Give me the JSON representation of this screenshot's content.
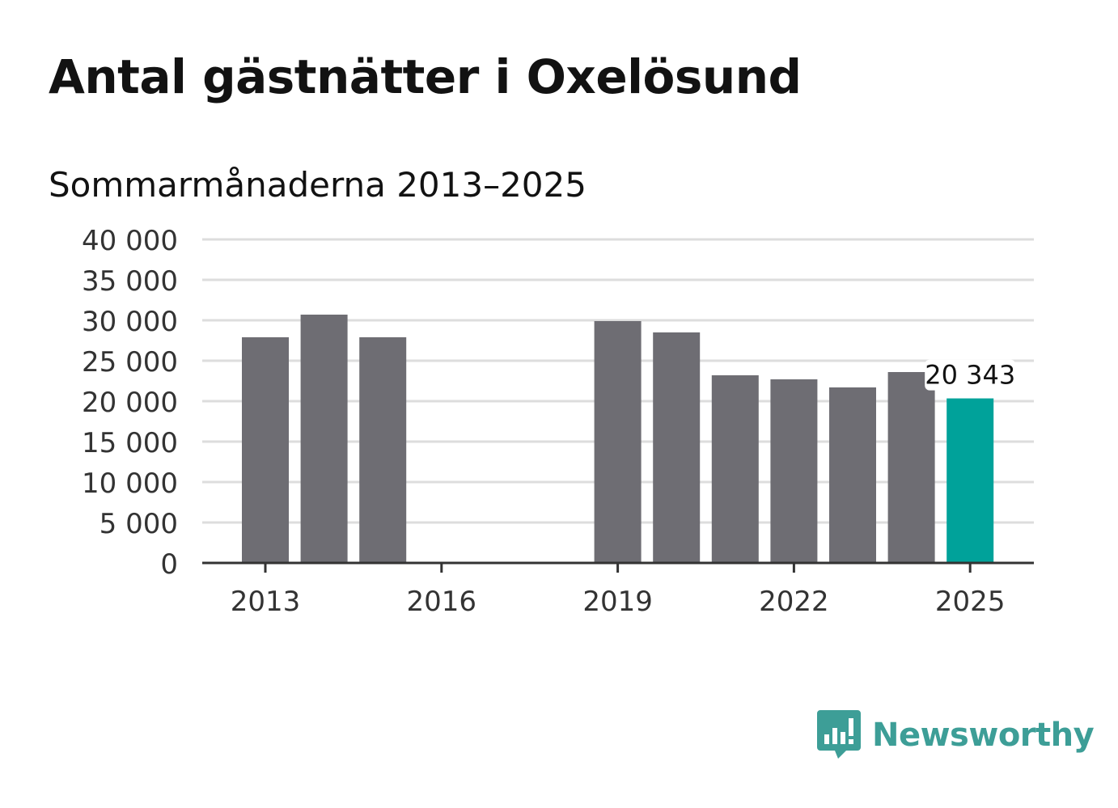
{
  "header": {
    "title": "Antal gästnätter i Oxelösund",
    "subtitle": "Sommarmånaderna 2013–2025"
  },
  "brand": {
    "name": "Newsworthy",
    "logo_icon": "bar-chart-speech-bubble-icon",
    "color": "#3d9e97"
  },
  "colors": {
    "bar": "#6e6d73",
    "highlight": "#00a29a",
    "grid": "#dddddd",
    "axis": "#333333"
  },
  "chart_data": {
    "type": "bar",
    "categories": [
      "2013",
      "2014",
      "2015",
      "2016",
      "2017",
      "2018",
      "2019",
      "2020",
      "2021",
      "2022",
      "2023",
      "2024",
      "2025"
    ],
    "values": [
      27900,
      30700,
      27900,
      null,
      null,
      null,
      29900,
      28500,
      23200,
      22700,
      21700,
      23600,
      20343
    ],
    "x_tick_labels": [
      "2013",
      "2016",
      "2019",
      "2022",
      "2025"
    ],
    "y_tick_labels": [
      "0",
      "5 000",
      "10 000",
      "15 000",
      "20 000",
      "25 000",
      "30 000",
      "35 000",
      "40 000"
    ],
    "ylim": [
      0,
      40000
    ],
    "highlight_category": "2025",
    "data_label": "20 343",
    "grid": true,
    "legend": "none"
  }
}
